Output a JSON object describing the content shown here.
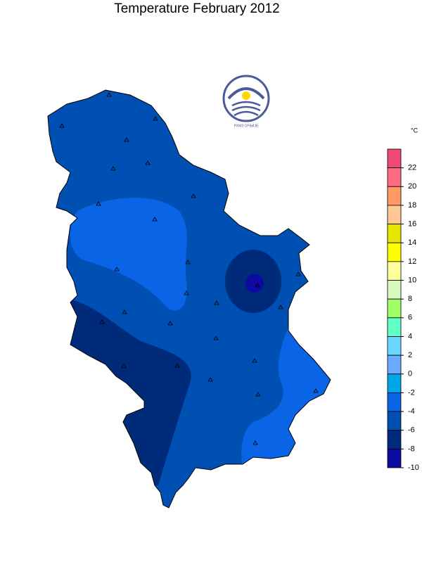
{
  "title": "Temperature  February 2012",
  "logo_text": "РХМЗ СРБИЈЕ",
  "legend": {
    "unit": "°C",
    "ticks": [
      22,
      20,
      18,
      16,
      14,
      12,
      10,
      8,
      6,
      4,
      2,
      0,
      -2,
      -4,
      -6,
      -8,
      -10
    ],
    "colors": [
      "#f04a78",
      "#ff6c84",
      "#ff9a66",
      "#ffc896",
      "#e6e600",
      "#ffff00",
      "#ffff99",
      "#d8f8c0",
      "#a0ff66",
      "#60ffc8",
      "#6ad8ff",
      "#6aaaff",
      "#00a6e8",
      "#0a64e6",
      "#0050b4",
      "#002a7a",
      "#0c0aa0"
    ]
  }
}
